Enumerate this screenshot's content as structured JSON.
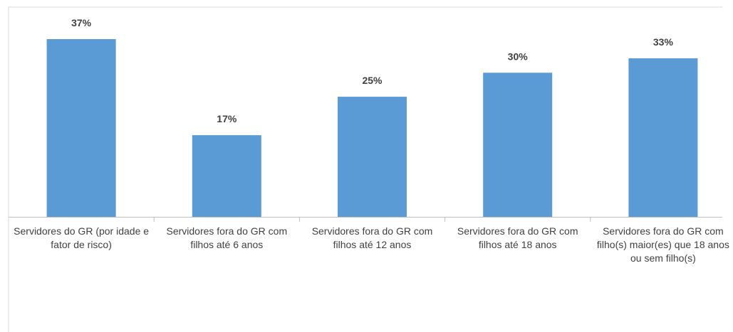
{
  "chart_data": {
    "type": "bar",
    "categories": [
      "Servidores do GR (por idade e fator de risco)",
      "Servidores fora do GR com filhos até 6 anos",
      "Servidores fora do GR com filhos até 12 anos",
      "Servidores fora do GR com filhos até 18 anos",
      "Servidores fora do GR com filho(s) maior(es) que 18 anos ou sem filho(s)"
    ],
    "values": [
      37,
      17,
      25,
      30,
      33
    ],
    "value_labels": [
      "37%",
      "17%",
      "25%",
      "30%",
      "33%"
    ],
    "color": "#5b9bd5"
  }
}
